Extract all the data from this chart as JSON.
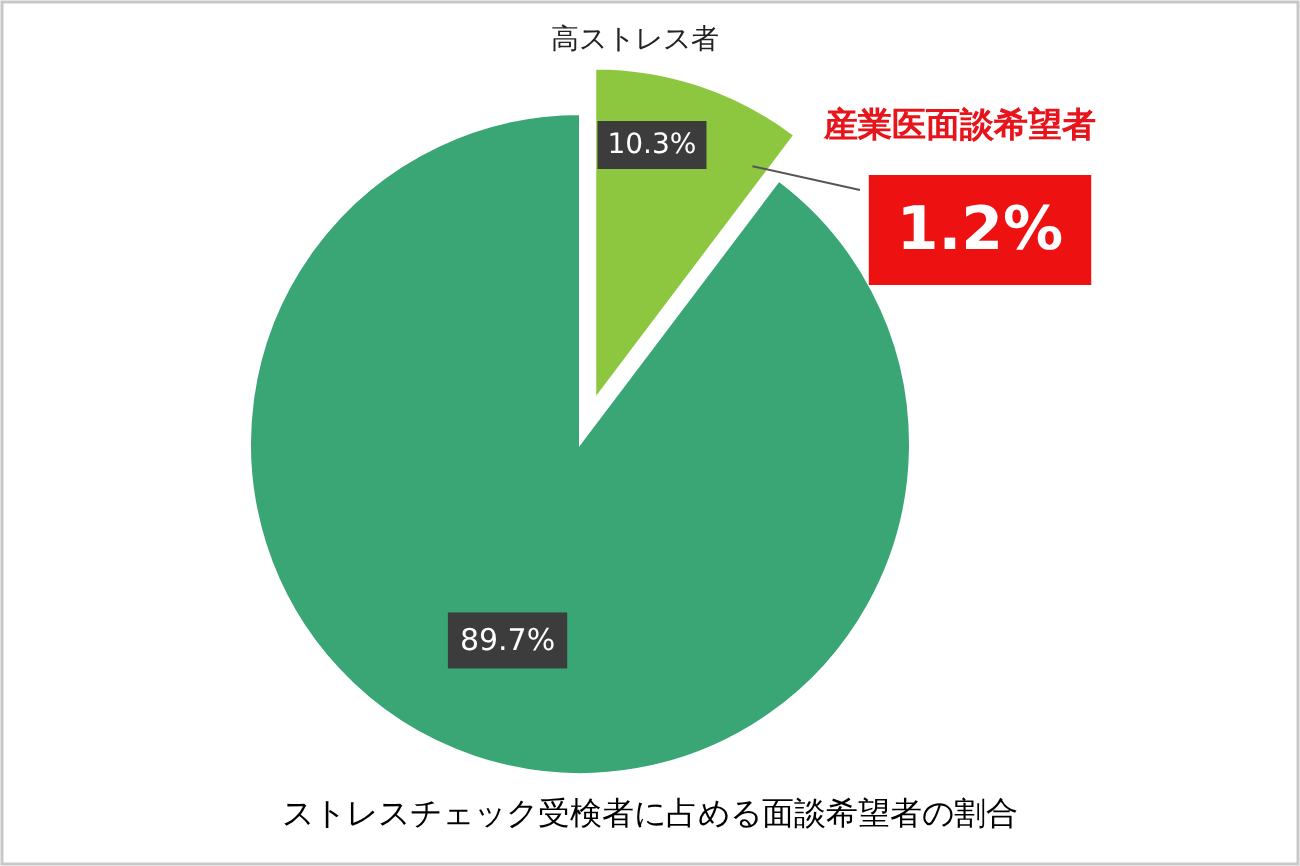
{
  "chart_data": {
    "type": "pie",
    "categories": [
      "高ストレス者",
      null
    ],
    "values": [
      10.3,
      89.7
    ],
    "colors": [
      "#8dc63f",
      "#3aa676"
    ],
    "value_labels": [
      "10.3%",
      "89.7%"
    ],
    "annotations": [
      {
        "text": "産業医面談希望者",
        "x": "高ストレス者"
      },
      {
        "text": "1.2%",
        "x": "高ストレス者"
      },
      "ストレスチェック受検者に占める面談希望者の割合"
    ]
  }
}
